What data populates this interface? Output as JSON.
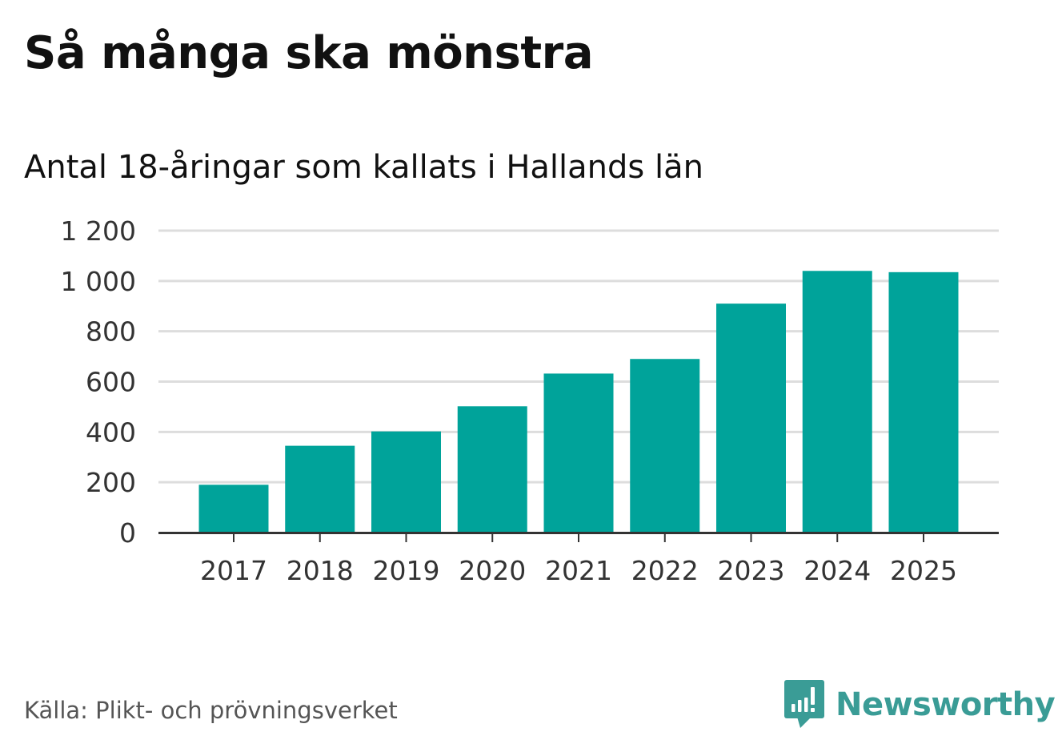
{
  "title": "Så många ska mönstra",
  "subtitle": "Antal 18-åringar som kallats i Hallands län",
  "source": "Källa: Plikt- och prövningsverket",
  "brand": {
    "name": "Newsworthy",
    "icon": "newsworthy-logo-icon",
    "color": "#3a9c96"
  },
  "colors": {
    "bar": "#00a39a",
    "grid": "#dddddd",
    "axis": "#333333",
    "tick_text": "#333333"
  },
  "chart_data": {
    "type": "bar",
    "categories": [
      "2017",
      "2018",
      "2019",
      "2020",
      "2021",
      "2022",
      "2023",
      "2024",
      "2025"
    ],
    "values": [
      190,
      345,
      402,
      502,
      632,
      690,
      910,
      1040,
      1035
    ],
    "y_ticks": [
      0,
      200,
      400,
      600,
      800,
      1000,
      1200
    ],
    "y_tick_labels": [
      "0",
      "200",
      "400",
      "600",
      "800",
      "1 000",
      "1 200"
    ],
    "ylim": [
      0,
      1200
    ],
    "grid": true,
    "xlabel": "",
    "ylabel": ""
  }
}
